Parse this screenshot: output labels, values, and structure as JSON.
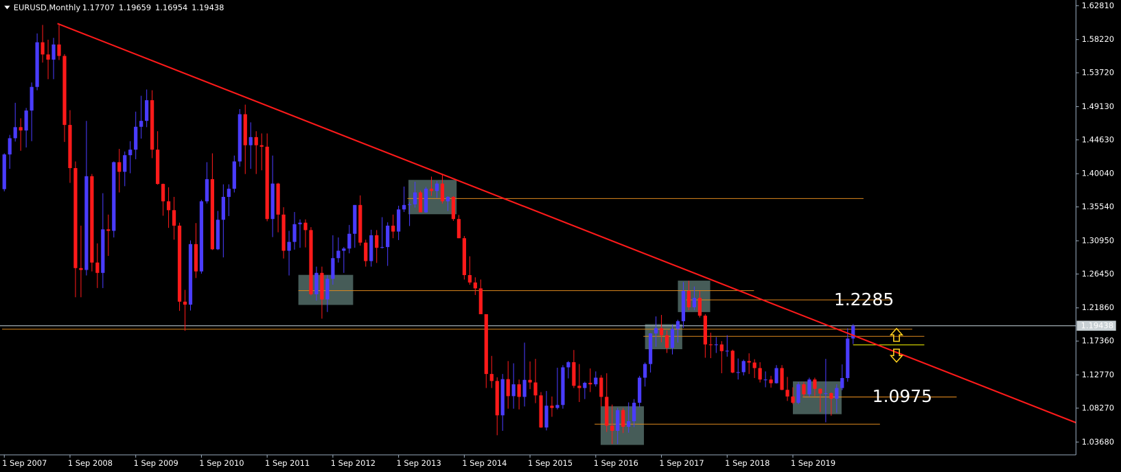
{
  "chart_data": {
    "type": "candlestick",
    "symbol": "EURUSD,Monthly",
    "bull_color": "#4a3cff",
    "bear_color": "#ff1a1a",
    "ylim": [
      1.0194,
      1.6358
    ],
    "yticks": [
      {
        "value": 1.6281,
        "label": "1.62810"
      },
      {
        "value": 1.5822,
        "label": "1.58220"
      },
      {
        "value": 1.5372,
        "label": "1.53720"
      },
      {
        "value": 1.4913,
        "label": "1.49130"
      },
      {
        "value": 1.4463,
        "label": "1.44630"
      },
      {
        "value": 1.4004,
        "label": "1.40040"
      },
      {
        "value": 1.3554,
        "label": "1.35540"
      },
      {
        "value": 1.3095,
        "label": "1.30950"
      },
      {
        "value": 1.2645,
        "label": "1.26450"
      },
      {
        "value": 1.2186,
        "label": "1.21860"
      },
      {
        "value": 1.1736,
        "label": "1.17360"
      },
      {
        "value": 1.1277,
        "label": "1.12770"
      },
      {
        "value": 1.0827,
        "label": "1.08270"
      },
      {
        "value": 1.0368,
        "label": "1.03680"
      }
    ],
    "x_labels": [
      "1 Sep 2007",
      "1 Sep 2008",
      "1 Sep 2009",
      "1 Sep 2010",
      "1 Sep 2011",
      "1 Sep 2012",
      "1 Sep 2013",
      "1 Sep 2014",
      "1 Sep 2015",
      "1 Sep 2016",
      "1 Sep 2017",
      "1 Sep 2018",
      "1 Sep 2019"
    ],
    "candles": [
      [
        1.3795,
        1.428,
        1.3765,
        1.4265
      ],
      [
        1.4265,
        1.453,
        1.407,
        1.4485
      ],
      [
        1.4485,
        1.4965,
        1.444,
        1.4635
      ],
      [
        1.4635,
        1.4755,
        1.4315,
        1.459
      ],
      [
        1.459,
        1.4895,
        1.436,
        1.486
      ],
      [
        1.486,
        1.524,
        1.4445,
        1.518
      ],
      [
        1.518,
        1.5905,
        1.5135,
        1.5785
      ],
      [
        1.5785,
        1.602,
        1.551,
        1.562
      ],
      [
        1.562,
        1.582,
        1.5285,
        1.555
      ],
      [
        1.555,
        1.5845,
        1.5285,
        1.5755
      ],
      [
        1.5755,
        1.604,
        1.5545,
        1.56
      ],
      [
        1.56,
        1.5625,
        1.4435,
        1.4665
      ],
      [
        1.4665,
        1.4865,
        1.388,
        1.408
      ],
      [
        1.408,
        1.417,
        1.233,
        1.2725
      ],
      [
        1.2725,
        1.33,
        1.233,
        1.27
      ],
      [
        1.27,
        1.472,
        1.2625,
        1.397
      ],
      [
        1.397,
        1.4,
        1.268,
        1.28
      ],
      [
        1.28,
        1.306,
        1.2455,
        1.266
      ],
      [
        1.266,
        1.374,
        1.2455,
        1.325
      ],
      [
        1.325,
        1.345,
        1.289,
        1.323
      ],
      [
        1.323,
        1.417,
        1.314,
        1.416
      ],
      [
        1.416,
        1.434,
        1.375,
        1.403
      ],
      [
        1.403,
        1.4305,
        1.3835,
        1.4255
      ],
      [
        1.4255,
        1.4445,
        1.401,
        1.433
      ],
      [
        1.433,
        1.4845,
        1.42,
        1.464
      ],
      [
        1.464,
        1.506,
        1.448,
        1.472
      ],
      [
        1.472,
        1.5145,
        1.4635,
        1.5
      ],
      [
        1.5,
        1.5135,
        1.4215,
        1.433
      ],
      [
        1.433,
        1.458,
        1.3855,
        1.3865
      ],
      [
        1.3865,
        1.387,
        1.3435,
        1.363
      ],
      [
        1.363,
        1.382,
        1.327,
        1.351
      ],
      [
        1.351,
        1.369,
        1.311,
        1.33
      ],
      [
        1.33,
        1.334,
        1.2145,
        1.227
      ],
      [
        1.227,
        1.243,
        1.1875,
        1.223
      ],
      [
        1.223,
        1.31,
        1.215,
        1.305
      ],
      [
        1.305,
        1.3335,
        1.259,
        1.268
      ],
      [
        1.268,
        1.365,
        1.265,
        1.363
      ],
      [
        1.363,
        1.416,
        1.36,
        1.393
      ],
      [
        1.393,
        1.428,
        1.297,
        1.298
      ],
      [
        1.298,
        1.35,
        1.297,
        1.338
      ],
      [
        1.338,
        1.386,
        1.287,
        1.369
      ],
      [
        1.369,
        1.386,
        1.343,
        1.38
      ],
      [
        1.38,
        1.425,
        1.375,
        1.417
      ],
      [
        1.417,
        1.488,
        1.41,
        1.481
      ],
      [
        1.481,
        1.494,
        1.4,
        1.439
      ],
      [
        1.439,
        1.47,
        1.407,
        1.45
      ],
      [
        1.45,
        1.458,
        1.4,
        1.439
      ],
      [
        1.439,
        1.455,
        1.405,
        1.437
      ],
      [
        1.437,
        1.455,
        1.336,
        1.339
      ],
      [
        1.339,
        1.425,
        1.3145,
        1.387
      ],
      [
        1.387,
        1.388,
        1.321,
        1.345
      ],
      [
        1.345,
        1.355,
        1.2855,
        1.296
      ],
      [
        1.296,
        1.323,
        1.2625,
        1.308
      ],
      [
        1.308,
        1.3485,
        1.2975,
        1.332
      ],
      [
        1.332,
        1.3385,
        1.3,
        1.334
      ],
      [
        1.334,
        1.3385,
        1.3005,
        1.324
      ],
      [
        1.324,
        1.328,
        1.2355,
        1.237
      ],
      [
        1.237,
        1.2745,
        1.2285,
        1.266
      ],
      [
        1.266,
        1.2745,
        1.204,
        1.23
      ],
      [
        1.23,
        1.263,
        1.213,
        1.258
      ],
      [
        1.258,
        1.317,
        1.25,
        1.286
      ],
      [
        1.286,
        1.314,
        1.28,
        1.296
      ],
      [
        1.296,
        1.301,
        1.266,
        1.299
      ],
      [
        1.299,
        1.331,
        1.2925,
        1.319
      ],
      [
        1.319,
        1.358,
        1.3,
        1.358
      ],
      [
        1.358,
        1.371,
        1.303,
        1.307
      ],
      [
        1.307,
        1.311,
        1.2745,
        1.282
      ],
      [
        1.282,
        1.3245,
        1.2745,
        1.317
      ],
      [
        1.317,
        1.324,
        1.2795,
        1.3
      ],
      [
        1.3,
        1.3415,
        1.299,
        1.301
      ],
      [
        1.301,
        1.3345,
        1.2755,
        1.33
      ],
      [
        1.33,
        1.345,
        1.313,
        1.322
      ],
      [
        1.322,
        1.357,
        1.3105,
        1.352
      ],
      [
        1.352,
        1.383,
        1.3485,
        1.358
      ],
      [
        1.358,
        1.362,
        1.3295,
        1.359
      ],
      [
        1.359,
        1.3895,
        1.3545,
        1.375
      ],
      [
        1.375,
        1.3775,
        1.348,
        1.348
      ],
      [
        1.348,
        1.3825,
        1.3475,
        1.38
      ],
      [
        1.38,
        1.3965,
        1.3705,
        1.377
      ],
      [
        1.377,
        1.3905,
        1.3675,
        1.387
      ],
      [
        1.387,
        1.3995,
        1.36,
        1.363
      ],
      [
        1.363,
        1.37,
        1.35,
        1.369
      ],
      [
        1.369,
        1.37,
        1.3365,
        1.339
      ],
      [
        1.339,
        1.3445,
        1.313,
        1.313
      ],
      [
        1.313,
        1.316,
        1.257,
        1.263
      ],
      [
        1.263,
        1.2885,
        1.25,
        1.253
      ],
      [
        1.253,
        1.26,
        1.236,
        1.245
      ],
      [
        1.245,
        1.257,
        1.21,
        1.21
      ],
      [
        1.21,
        1.21,
        1.11,
        1.129
      ],
      [
        1.129,
        1.1535,
        1.11,
        1.1195
      ],
      [
        1.1195,
        1.1245,
        1.046,
        1.073
      ],
      [
        1.073,
        1.129,
        1.052,
        1.122
      ],
      [
        1.122,
        1.1465,
        1.082,
        1.099
      ],
      [
        1.099,
        1.1435,
        1.082,
        1.115
      ],
      [
        1.115,
        1.1215,
        1.081,
        1.098
      ],
      [
        1.098,
        1.1715,
        1.085,
        1.121
      ],
      [
        1.121,
        1.146,
        1.1085,
        1.1175
      ],
      [
        1.1175,
        1.1495,
        1.0895,
        1.1
      ],
      [
        1.1,
        1.1045,
        1.056,
        1.0565
      ],
      [
        1.0565,
        1.106,
        1.0525,
        1.086
      ],
      [
        1.086,
        1.0985,
        1.071,
        1.083
      ],
      [
        1.083,
        1.1375,
        1.081,
        1.087
      ],
      [
        1.087,
        1.141,
        1.082,
        1.138
      ],
      [
        1.138,
        1.1465,
        1.123,
        1.145
      ],
      [
        1.145,
        1.1615,
        1.11,
        1.113
      ],
      [
        1.113,
        1.1425,
        1.091,
        1.11
      ],
      [
        1.11,
        1.1185,
        1.095,
        1.117
      ],
      [
        1.117,
        1.1365,
        1.1045,
        1.115
      ],
      [
        1.115,
        1.1325,
        1.112,
        1.124
      ],
      [
        1.124,
        1.1275,
        1.085,
        1.098
      ],
      [
        1.098,
        1.13,
        1.0505,
        1.059
      ],
      [
        1.059,
        1.0875,
        1.034,
        1.052
      ],
      [
        1.052,
        1.083,
        1.034,
        1.08
      ],
      [
        1.08,
        1.083,
        1.049,
        1.0575
      ],
      [
        1.0575,
        1.0905,
        1.0495,
        1.065
      ],
      [
        1.065,
        1.095,
        1.057,
        1.09
      ],
      [
        1.09,
        1.1265,
        1.084,
        1.124
      ],
      [
        1.124,
        1.1445,
        1.112,
        1.1425
      ],
      [
        1.1425,
        1.1845,
        1.131,
        1.184
      ],
      [
        1.184,
        1.207,
        1.166,
        1.191
      ],
      [
        1.191,
        1.209,
        1.172,
        1.1815
      ],
      [
        1.1815,
        1.188,
        1.1575,
        1.1645
      ],
      [
        1.1645,
        1.196,
        1.1555,
        1.19
      ],
      [
        1.19,
        1.2025,
        1.1715,
        1.2005
      ],
      [
        1.2005,
        1.2535,
        1.1915,
        1.2415
      ],
      [
        1.2415,
        1.2555,
        1.2155,
        1.2195
      ],
      [
        1.2195,
        1.2475,
        1.2155,
        1.232
      ],
      [
        1.232,
        1.2415,
        1.2055,
        1.208
      ],
      [
        1.208,
        1.21,
        1.151,
        1.169
      ],
      [
        1.169,
        1.185,
        1.1505,
        1.1685
      ],
      [
        1.1685,
        1.179,
        1.1575,
        1.169
      ],
      [
        1.169,
        1.1735,
        1.13,
        1.16
      ],
      [
        1.16,
        1.1815,
        1.1525,
        1.1605
      ],
      [
        1.1605,
        1.162,
        1.13,
        1.131
      ],
      [
        1.131,
        1.15,
        1.1215,
        1.1315
      ],
      [
        1.1315,
        1.1485,
        1.127,
        1.1465
      ],
      [
        1.1465,
        1.157,
        1.129,
        1.1445
      ],
      [
        1.1445,
        1.149,
        1.1235,
        1.137
      ],
      [
        1.137,
        1.145,
        1.1175,
        1.1215
      ],
      [
        1.1215,
        1.1325,
        1.111,
        1.1215
      ],
      [
        1.1215,
        1.1265,
        1.1105,
        1.1165
      ],
      [
        1.1165,
        1.141,
        1.116,
        1.137
      ],
      [
        1.137,
        1.141,
        1.107,
        1.1075
      ],
      [
        1.1075,
        1.125,
        1.0925,
        1.0985
      ],
      [
        1.0985,
        1.111,
        1.088,
        1.09
      ],
      [
        1.09,
        1.118,
        1.088,
        1.115
      ],
      [
        1.115,
        1.118,
        1.098,
        1.1015
      ],
      [
        1.1015,
        1.124,
        1.098,
        1.1215
      ],
      [
        1.1215,
        1.124,
        1.099,
        1.109
      ],
      [
        1.109,
        1.1095,
        1.0775,
        1.1025
      ],
      [
        1.1025,
        1.1495,
        1.0635,
        1.103
      ],
      [
        1.103,
        1.104,
        1.0725,
        1.0955
      ],
      [
        1.0955,
        1.115,
        1.0765,
        1.11
      ],
      [
        1.11,
        1.142,
        1.107,
        1.1235
      ],
      [
        1.1235,
        1.191,
        1.1185,
        1.177
      ],
      [
        1.17707,
        1.19659,
        1.16954,
        1.19438
      ]
    ],
    "trendline": {
      "x": [
        9.7,
        195.7
      ],
      "y": [
        1.6039,
        1.063
      ],
      "color": "#ff1a1a"
    },
    "levels": [
      {
        "price": 1.3668,
        "x": [
          73.6,
          156.9
        ],
        "color": "#e08a1e"
      },
      {
        "price": 1.242,
        "x": [
          53.7,
          136.9
        ],
        "color": "#e08a1e"
      },
      {
        "price": 1.2294,
        "x": [
          124.5,
          161.9
        ],
        "color": "#e08a1e"
      },
      {
        "price": 1.1897,
        "x": [
          -0.4,
          165.8
        ],
        "color": "#e08a1e"
      },
      {
        "price": 1.18,
        "x": [
          116.7,
          168
        ],
        "color": "#e08a1e"
      },
      {
        "price": 1.0978,
        "x": [
          145.8,
          173.9
        ],
        "color": "#e08a1e"
      },
      {
        "price": 1.061,
        "x": [
          107.8,
          159.9
        ],
        "color": "#e08a1e"
      },
      {
        "price": 1.1684,
        "x": [
          155,
          168
        ],
        "color": "#ffff00"
      }
    ],
    "zones": [
      {
        "x": [
          73.8,
          82.6
        ],
        "y": [
          1.3455,
          1.392
        ]
      },
      {
        "x": [
          53.7,
          63.7
        ],
        "y": [
          1.2226,
          1.2633
        ]
      },
      {
        "x": [
          123,
          128.9
        ],
        "y": [
          1.2129,
          1.2555
        ]
      },
      {
        "x": [
          117,
          123.8
        ],
        "y": [
          1.1626,
          1.1965
        ]
      },
      {
        "x": [
          108.9,
          116.8
        ],
        "y": [
          1.0329,
          1.0852
        ]
      },
      {
        "x": [
          144,
          152.9
        ],
        "y": [
          1.0745,
          1.119
        ]
      }
    ],
    "annotations": [
      {
        "text": "1.2285",
        "x": 151.5,
        "price": 1.2285
      },
      {
        "text": "1.0975",
        "x": 158.5,
        "price": 1.0975
      }
    ]
  }
}
